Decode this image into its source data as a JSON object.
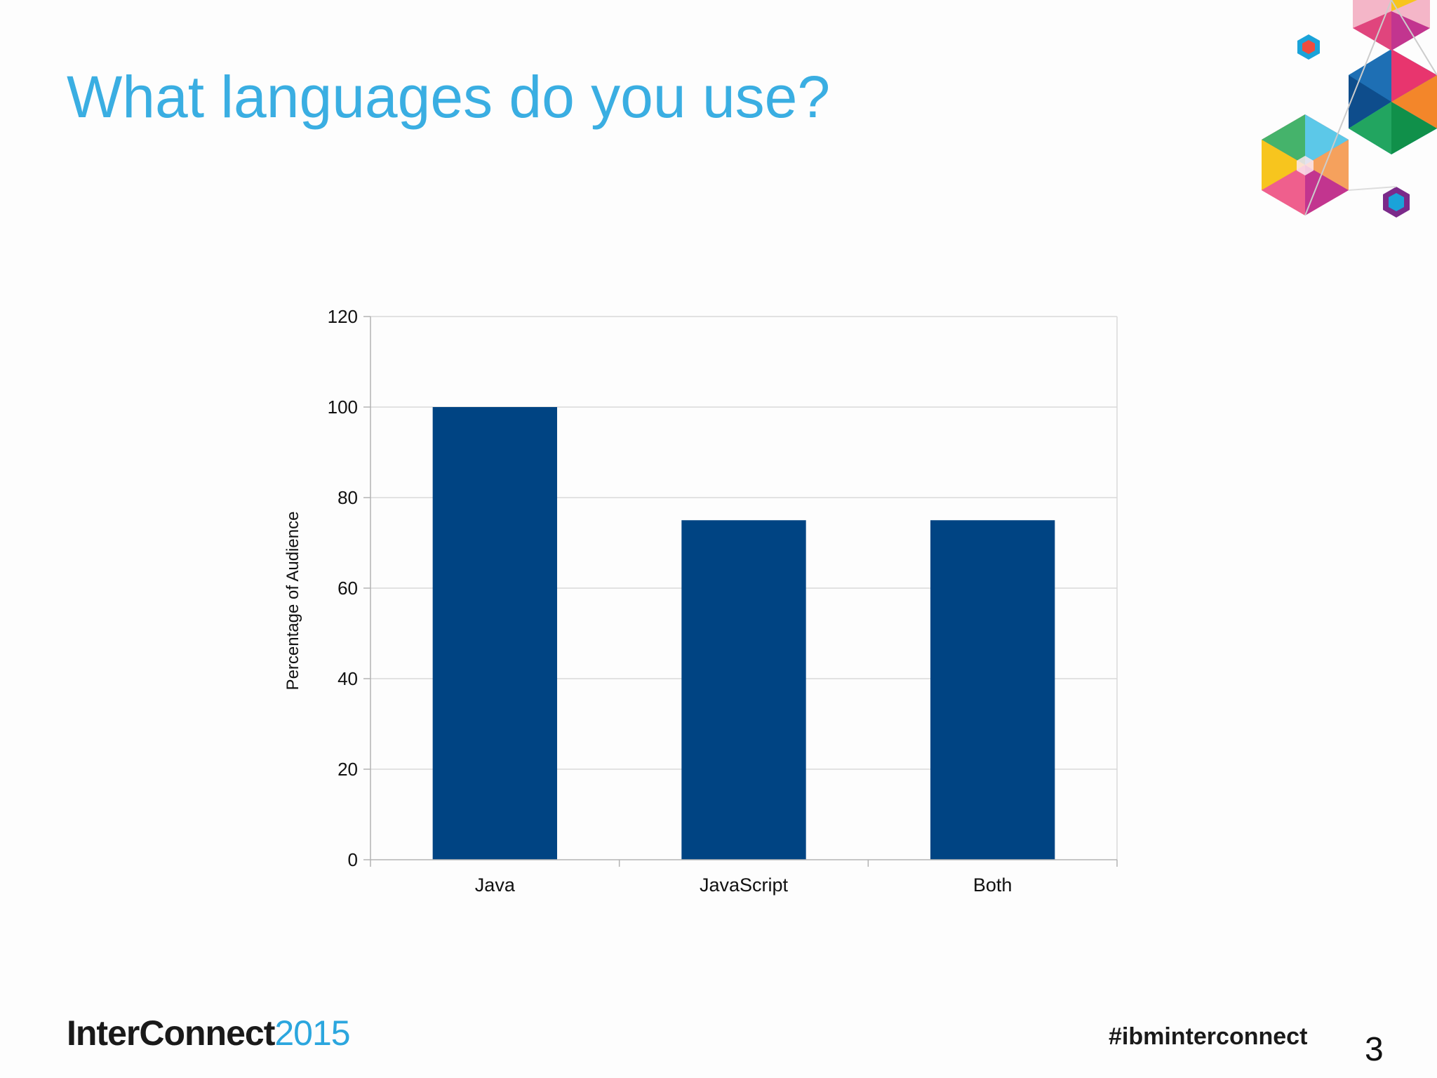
{
  "slide": {
    "title": "What languages do you use?",
    "logo_brand": "InterConnect",
    "logo_year": "2015",
    "hashtag": "#ibminterconnect",
    "page_number": "3",
    "title_color": "#3aaee2",
    "decoration_icon": "hexagon-cluster-icon"
  },
  "chart_data": {
    "type": "bar",
    "title": "",
    "xlabel": "",
    "ylabel": "Percentage of Audience",
    "categories": [
      "Java",
      "JavaScript",
      "Both"
    ],
    "values": [
      100,
      75,
      75
    ],
    "ylim": [
      0,
      120
    ],
    "yticks": [
      0,
      20,
      40,
      60,
      80,
      100,
      120
    ],
    "grid": true,
    "legend": "none",
    "bar_color": "#004483"
  }
}
